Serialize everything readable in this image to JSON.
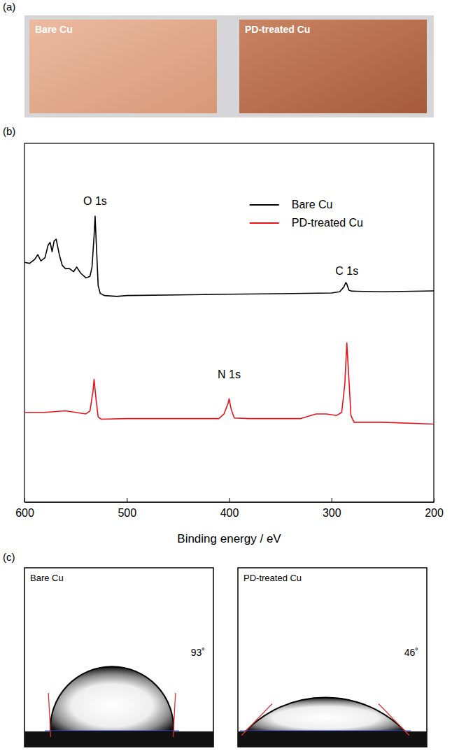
{
  "panel_a": {
    "letter": "(a)",
    "labels": [
      "Bare Cu",
      "PD-treated Cu"
    ]
  },
  "chart_data": {
    "letter": "(b)",
    "type": "line",
    "x_label": "Binding energy / eV",
    "xlim": [
      600,
      200
    ],
    "xticks": [
      600,
      500,
      400,
      300,
      200
    ],
    "ylim": [
      0,
      116
    ],
    "tick_labels": "x",
    "legend": "upper right",
    "series": [
      {
        "name": "Bare Cu",
        "color": "#000000",
        "x": [
          600,
          595,
          590,
          587,
          584,
          580,
          577,
          575,
          573,
          571,
          569,
          566,
          563,
          560,
          556,
          552,
          549,
          545,
          540,
          536,
          534,
          532,
          531,
          530,
          528,
          526,
          522,
          510,
          500,
          450,
          400,
          350,
          300,
          292,
          288,
          286,
          285,
          283,
          280,
          250,
          200
        ],
        "values": [
          77.5,
          77.2,
          78.5,
          80,
          78,
          79,
          83,
          84,
          81,
          84.5,
          85,
          80,
          76.5,
          75.5,
          75.5,
          74.5,
          76,
          74,
          72.5,
          73,
          76,
          86,
          92.5,
          85,
          70,
          67.5,
          66.8,
          66.5,
          66.8,
          67,
          67.2,
          67.4,
          67.6,
          68,
          69.5,
          71,
          70.5,
          68.5,
          68.2,
          68,
          68.3
        ]
      },
      {
        "name": "PD-treated Cu",
        "color": "#e8141c",
        "x": [
          600,
          580,
          560,
          550,
          540,
          536,
          533,
          532,
          530,
          528,
          525,
          500,
          450,
          410,
          405,
          401,
          400,
          398,
          395,
          380,
          330,
          315,
          305,
          295,
          290,
          287,
          285,
          283,
          281,
          278,
          250,
          200
        ],
        "values": [
          29,
          29,
          29.5,
          29,
          28.5,
          29.5,
          36,
          39.7,
          33,
          27.5,
          26.8,
          27,
          27,
          27,
          28.5,
          32,
          33.4,
          30,
          27.2,
          27,
          27,
          28.5,
          28.5,
          28,
          29,
          38,
          51.5,
          40,
          28,
          25.8,
          25.8,
          25.2
        ]
      }
    ],
    "annotations": [
      {
        "text": "O 1s",
        "x": 531,
        "y": 96
      },
      {
        "text": "N 1s",
        "x": 400,
        "y": 40
      },
      {
        "text": "C 1s",
        "x": 285,
        "y": 73.5
      }
    ]
  },
  "panel_c": {
    "letter": "(c)",
    "images": [
      {
        "label": "Bare Cu",
        "contact_angle": 93,
        "angle_label": "93˚"
      },
      {
        "label": "PD-treated Cu",
        "contact_angle": 46,
        "angle_label": "46˚"
      }
    ]
  }
}
